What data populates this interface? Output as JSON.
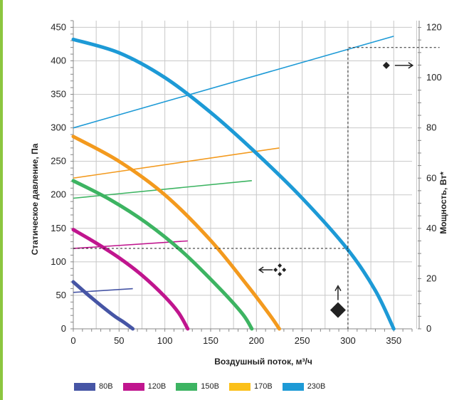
{
  "colors": {
    "accent_bar": "#8cc63f",
    "grid": "#c8c8c8",
    "axis": "#888888",
    "dashed": "#222222",
    "marker": "#222222"
  },
  "chart_data": {
    "type": "line",
    "xlabel": "Воздушный поток, м³/ч",
    "ylabel": "Статическое давление, Па",
    "y2label": "Мощность, Вт*",
    "xlim": [
      0,
      370
    ],
    "ylim": [
      0,
      460
    ],
    "y2lim": [
      0,
      122.7
    ],
    "x_ticks": [
      0,
      50,
      100,
      150,
      200,
      250,
      300,
      350
    ],
    "y_ticks": [
      0,
      50,
      100,
      150,
      200,
      250,
      300,
      350,
      400,
      450
    ],
    "y2_ticks": [
      0,
      20,
      40,
      60,
      80,
      100,
      120
    ],
    "grid": true,
    "legend_position": "bottom",
    "legend": [
      {
        "label": "80В",
        "color": "#4655a5"
      },
      {
        "label": "120В",
        "color": "#c0158e"
      },
      {
        "label": "150В",
        "color": "#3db462"
      },
      {
        "label": "170В",
        "color": "#fbc019"
      },
      {
        "label": "230В",
        "color": "#1d9ad6"
      }
    ],
    "series": [
      {
        "name": "80В",
        "color": "#4655a5",
        "pressure_curve": {
          "x": [
            0,
            15,
            30,
            45,
            55,
            65
          ],
          "y": [
            70,
            52,
            35,
            19,
            10,
            0
          ]
        },
        "power_line": {
          "x": [
            0,
            65
          ],
          "y2": [
            14.5,
            16
          ]
        }
      },
      {
        "name": "120В",
        "color": "#c0158e",
        "pressure_curve": {
          "x": [
            0,
            25,
            50,
            75,
            100,
            115,
            125
          ],
          "y": [
            148,
            128,
            106,
            80,
            48,
            24,
            0
          ]
        },
        "power_line": {
          "x": [
            0,
            125
          ],
          "y2": [
            32,
            35
          ]
        }
      },
      {
        "name": "150В",
        "color": "#3db462",
        "pressure_curve": {
          "x": [
            0,
            40,
            80,
            120,
            160,
            185,
            195
          ],
          "y": [
            221,
            193,
            158,
            114,
            60,
            22,
            0
          ]
        },
        "power_line": {
          "x": [
            0,
            195
          ],
          "y2": [
            52,
            59
          ]
        }
      },
      {
        "name": "170В",
        "color": "#f39a1e",
        "pressure_curve": {
          "x": [
            0,
            50,
            100,
            150,
            190,
            215,
            225
          ],
          "y": [
            287,
            250,
            200,
            132,
            65,
            20,
            0
          ]
        },
        "power_line": {
          "x": [
            0,
            225
          ],
          "y2": [
            60,
            72
          ]
        }
      },
      {
        "name": "230В",
        "color": "#1d9ad6",
        "pressure_curve": {
          "x": [
            0,
            50,
            100,
            150,
            200,
            250,
            300,
            330,
            350
          ],
          "y": [
            432,
            412,
            375,
            323,
            262,
            195,
            118,
            57,
            0
          ]
        },
        "power_line": {
          "x": [
            0,
            350
          ],
          "y2": [
            80,
            116.5
          ]
        }
      }
    ],
    "annotations": [
      {
        "type": "dashed_path",
        "points": [
          [
            0,
            120
          ],
          [
            300,
            120
          ]
        ],
        "axis": "y"
      },
      {
        "type": "dashed_path",
        "points": [
          [
            300,
            0
          ],
          [
            300,
            112
          ],
          [
            400,
            112
          ]
        ],
        "axis": "y2"
      },
      {
        "type": "marker",
        "shape": "diamond",
        "at_x": 300,
        "at_y": 28,
        "arrow": "up"
      },
      {
        "type": "marker",
        "shape": "diamond-small",
        "at_x": 359,
        "at_y2": 106,
        "arrow": "right"
      },
      {
        "type": "marker",
        "shape": "cluster",
        "at_x": 210,
        "at_y": 105,
        "arrow": "left"
      }
    ]
  }
}
